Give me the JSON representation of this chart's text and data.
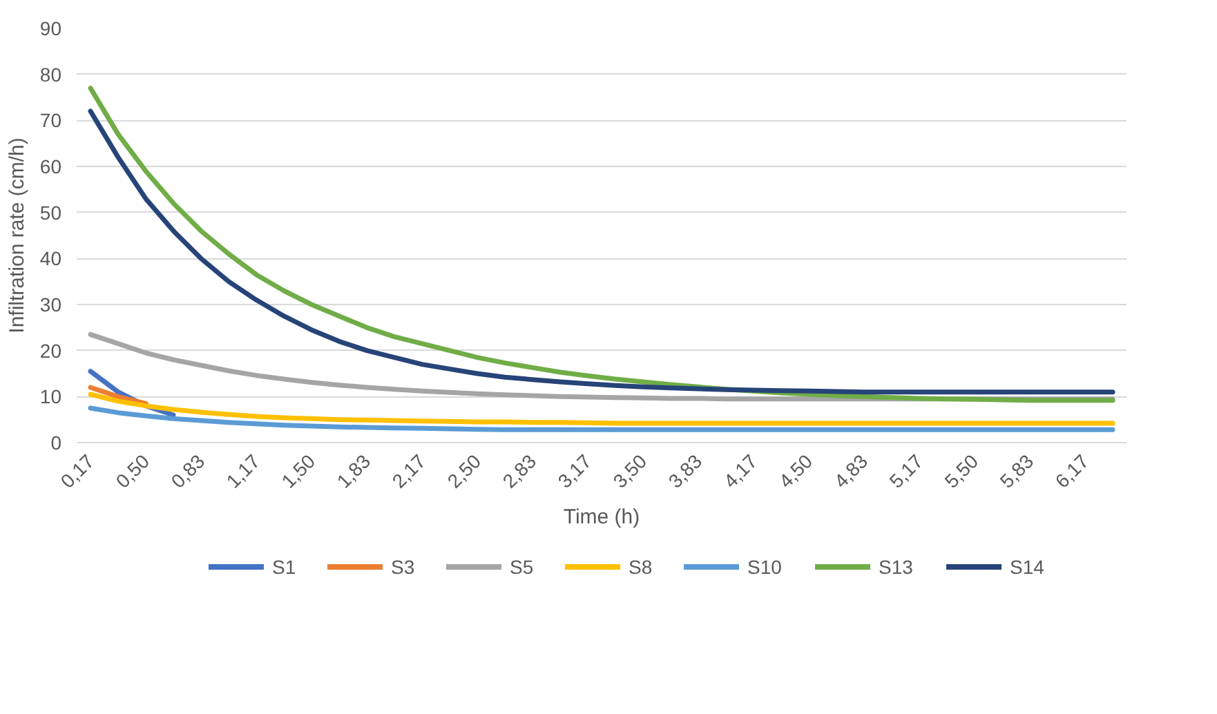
{
  "chart_data": {
    "type": "line",
    "xlabel": "Time (h)",
    "ylabel": "Infiltration rate (cm/h)",
    "categories": [
      "0,17",
      null,
      "0,50",
      null,
      "0,83",
      null,
      "1,17",
      null,
      "1,50",
      null,
      "1,83",
      null,
      "2,17",
      null,
      "2,50",
      null,
      "2,83",
      null,
      "3,17",
      null,
      "3,50",
      null,
      "3,83",
      null,
      "4,17",
      null,
      "4,50",
      null,
      "4,83",
      null,
      "5,17",
      null,
      "5,50",
      null,
      "5,83",
      null,
      "6,17",
      null
    ],
    "ylim": [
      0,
      90
    ],
    "yticks": [
      0,
      10,
      20,
      30,
      40,
      50,
      60,
      70,
      80,
      90
    ],
    "grid": "y",
    "legend": "bottom",
    "marker": "none",
    "line_style": "solid",
    "series": [
      {
        "name": "S1",
        "color": "#4472c4",
        "values": [
          15.5,
          11,
          8,
          6,
          null,
          null,
          null,
          null,
          null,
          null,
          null,
          null,
          null,
          null,
          null,
          null,
          null,
          null,
          null,
          null,
          null,
          null,
          null,
          null,
          null,
          null,
          null,
          null,
          null,
          null,
          null,
          null,
          null,
          null,
          null,
          null,
          null,
          null
        ]
      },
      {
        "name": "S3",
        "color": "#ed7d31",
        "values": [
          12,
          10,
          8.5,
          null,
          null,
          null,
          null,
          null,
          null,
          null,
          null,
          null,
          null,
          null,
          null,
          null,
          null,
          null,
          null,
          null,
          null,
          null,
          null,
          null,
          null,
          null,
          null,
          null,
          null,
          null,
          null,
          null,
          null,
          null,
          null,
          null,
          null,
          null
        ]
      },
      {
        "name": "S5",
        "color": "#a5a5a5",
        "values": [
          23.5,
          21.5,
          19.5,
          18,
          16.8,
          15.6,
          14.6,
          13.8,
          13.1,
          12.5,
          12,
          11.6,
          11.2,
          10.9,
          10.6,
          10.4,
          10.2,
          10,
          9.9,
          9.8,
          9.7,
          9.6,
          9.6,
          9.5,
          9.5,
          9.5,
          9.5,
          9.5,
          9.5,
          9.5,
          9.5,
          9.5,
          9.5,
          9.5,
          9.5,
          9.5,
          9.5,
          9.5
        ]
      },
      {
        "name": "S8",
        "color": "#ffc000",
        "values": [
          10.5,
          9,
          8,
          7.2,
          6.6,
          6.1,
          5.7,
          5.4,
          5.2,
          5,
          4.9,
          4.8,
          4.7,
          4.6,
          4.5,
          4.5,
          4.4,
          4.4,
          4.3,
          4.2,
          4.2,
          4.2,
          4.2,
          4.2,
          4.2,
          4.2,
          4.2,
          4.2,
          4.2,
          4.2,
          4.2,
          4.2,
          4.2,
          4.2,
          4.2,
          4.2,
          4.2,
          4.2
        ]
      },
      {
        "name": "S10",
        "color": "#5b9bd5",
        "values": [
          7.5,
          6.5,
          5.8,
          5.2,
          4.8,
          4.4,
          4.1,
          3.8,
          3.6,
          3.4,
          3.3,
          3.2,
          3.1,
          3,
          2.9,
          2.8,
          2.8,
          2.8,
          2.8,
          2.8,
          2.8,
          2.8,
          2.8,
          2.8,
          2.8,
          2.8,
          2.8,
          2.8,
          2.8,
          2.8,
          2.8,
          2.8,
          2.8,
          2.8,
          2.8,
          2.8,
          2.8,
          2.8
        ]
      },
      {
        "name": "S13",
        "color": "#70ad47",
        "values": [
          77,
          67,
          59,
          52,
          46,
          41,
          36.5,
          33,
          30,
          27.5,
          25,
          23,
          21.5,
          20,
          18.5,
          17.3,
          16.3,
          15.3,
          14.5,
          13.8,
          13.2,
          12.6,
          12.1,
          11.6,
          11.2,
          10.8,
          10.5,
          10.2,
          10,
          9.8,
          9.6,
          9.5,
          9.4,
          9.3,
          9.2,
          9.2,
          9.2,
          9.2
        ]
      },
      {
        "name": "S14",
        "color": "#264478",
        "values": [
          72,
          62,
          53,
          46,
          40,
          35,
          31,
          27.5,
          24.5,
          22,
          20,
          18.5,
          17,
          16,
          15,
          14.2,
          13.7,
          13.2,
          12.8,
          12.4,
          12.1,
          11.9,
          11.7,
          11.5,
          11.4,
          11.3,
          11.2,
          11.1,
          11,
          11,
          11,
          11,
          11,
          11,
          11,
          11,
          11,
          11
        ]
      }
    ]
  }
}
